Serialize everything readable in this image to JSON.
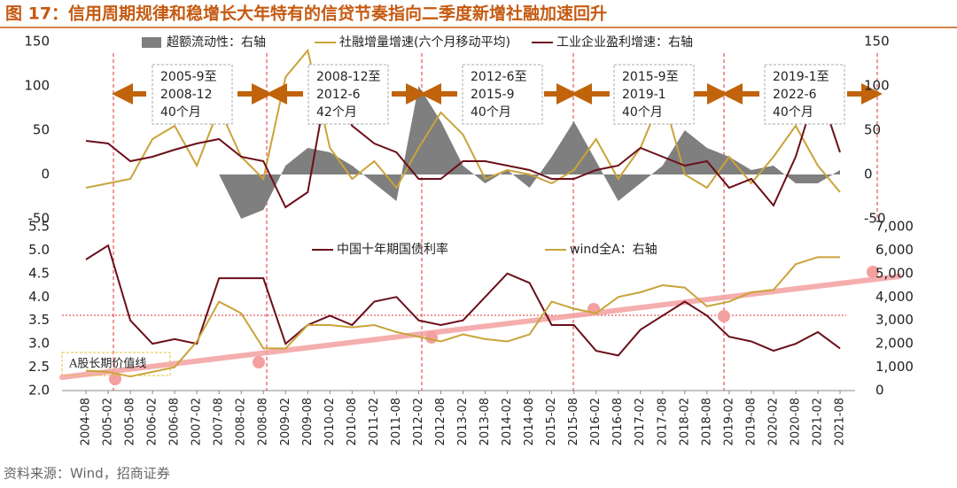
{
  "header": {
    "title": "图 17：信用周期规律和稳增长大年特有的信贷节奏指向二季度新增社融加速回升"
  },
  "chart_data": [
    {
      "type": "line",
      "ylim": [
        -50,
        150
      ],
      "yticks": [
        -50,
        0,
        50,
        100,
        150
      ],
      "y2lim": [
        -50,
        150
      ],
      "y2ticks": [
        -50,
        0,
        50,
        100,
        150
      ],
      "series": [
        {
          "name": "超额流动性：右轴",
          "type": "area",
          "axis": "y2",
          "color": "#7f7f7f",
          "values": [
            0,
            0,
            0,
            0,
            0,
            0,
            0,
            -50,
            -40,
            10,
            30,
            25,
            10,
            -10,
            -30,
            100,
            60,
            10,
            -10,
            5,
            -15,
            20,
            60,
            15,
            -30,
            -10,
            10,
            50,
            30,
            20,
            5,
            10,
            -10,
            -10,
            5
          ]
        },
        {
          "name": "社融增量增速(六个月移动平均)",
          "type": "line",
          "color": "#c9a43a",
          "values": [
            -15,
            -10,
            -5,
            40,
            55,
            10,
            75,
            20,
            -5,
            110,
            140,
            30,
            -5,
            15,
            -15,
            30,
            70,
            45,
            -5,
            5,
            0,
            -10,
            5,
            40,
            -5,
            30,
            90,
            0,
            -15,
            20,
            -10,
            20,
            55,
            10,
            -20
          ]
        },
        {
          "name": "工业企业盈利增速：右轴",
          "type": "line",
          "axis": "y2",
          "color": "#6b0f1a",
          "values": [
            38,
            35,
            15,
            20,
            28,
            35,
            40,
            20,
            15,
            -37,
            -20,
            120,
            55,
            35,
            25,
            -5,
            -5,
            15,
            15,
            10,
            5,
            -5,
            -5,
            5,
            10,
            30,
            20,
            10,
            15,
            -15,
            -5,
            -35,
            20,
            100,
            25
          ]
        }
      ],
      "annotations": [
        {
          "lines": [
            "2005-9至",
            "2008-12",
            "40个月"
          ]
        },
        {
          "lines": [
            "2008-12至",
            "2012-6",
            "42个月"
          ]
        },
        {
          "lines": [
            "2012-6至",
            "2015-9",
            "40个月"
          ]
        },
        {
          "lines": [
            "2015-9至",
            "2019-1",
            "40个月"
          ]
        },
        {
          "lines": [
            "2019-1至",
            "2022-6",
            "40个月"
          ]
        }
      ]
    },
    {
      "type": "line",
      "categories": [
        "2004-08",
        "2005-02",
        "2005-08",
        "2006-02",
        "2006-08",
        "2007-02",
        "2007-08",
        "2008-02",
        "2008-08",
        "2009-02",
        "2009-08",
        "2010-02",
        "2010-08",
        "2011-02",
        "2011-08",
        "2012-02",
        "2012-08",
        "2013-02",
        "2013-08",
        "2014-02",
        "2014-08",
        "2015-02",
        "2015-08",
        "2016-02",
        "2016-08",
        "2017-02",
        "2017-08",
        "2018-02",
        "2018-08",
        "2019-02",
        "2019-08",
        "2020-02",
        "2020-08",
        "2021-02",
        "2021-08"
      ],
      "ylim": [
        2,
        5.5
      ],
      "yticks": [
        {
          "value": 2,
          "label": "2.0"
        },
        2.5,
        {
          "value": 3,
          "label": "3.0"
        },
        3.5,
        {
          "value": 4,
          "label": "4.0"
        },
        4.5,
        {
          "value": 5,
          "label": "5.0"
        },
        5.5
      ],
      "y2lim": [
        0,
        7000
      ],
      "y2ticks": [
        0,
        {
          "value": 1000,
          "label": "1,000"
        },
        {
          "value": 2000,
          "label": "2,000"
        },
        {
          "value": 3000,
          "label": "3,000"
        },
        {
          "value": 4000,
          "label": "4,000"
        },
        {
          "value": 5000,
          "label": "5,000"
        },
        {
          "value": 6000,
          "label": "6,000"
        },
        {
          "value": 7000,
          "label": "7,000"
        }
      ],
      "series": [
        {
          "name": "中国十年期国债利率",
          "color": "#6b0f1a",
          "values": [
            4.8,
            5.1,
            3.5,
            3.0,
            3.1,
            3.0,
            4.4,
            4.4,
            4.4,
            3.0,
            3.4,
            3.6,
            3.4,
            3.9,
            4.0,
            3.5,
            3.4,
            3.5,
            4.0,
            4.5,
            4.3,
            3.4,
            3.4,
            2.85,
            2.75,
            3.3,
            3.6,
            3.9,
            3.6,
            3.15,
            3.05,
            2.85,
            3.0,
            3.25,
            2.9
          ]
        },
        {
          "name": "wind全A：右轴",
          "axis": "y2",
          "color": "#c9a43a",
          "values": [
            850,
            800,
            600,
            800,
            1000,
            2100,
            3800,
            3300,
            1800,
            1800,
            2800,
            2800,
            2700,
            2800,
            2500,
            2300,
            2100,
            2400,
            2200,
            2100,
            2400,
            3800,
            3500,
            3300,
            4000,
            4200,
            4500,
            4400,
            3600,
            3800,
            4200,
            4300,
            5400,
            5700,
            5700
          ]
        }
      ],
      "trend_label": "A股长期价值线"
    }
  ],
  "footer": {
    "source": "资料来源：Wind，招商证券"
  }
}
